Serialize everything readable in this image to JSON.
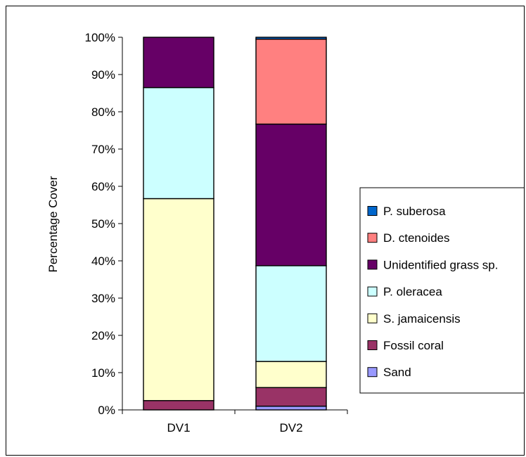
{
  "chart_data": {
    "type": "bar",
    "stacked": true,
    "percent": true,
    "categories": [
      "DV1",
      "DV2"
    ],
    "ylabel": "Percentage Cover",
    "xlabel": "",
    "ylim": [
      0,
      100
    ],
    "yticks": [
      "0%",
      "10%",
      "20%",
      "30%",
      "40%",
      "50%",
      "60%",
      "70%",
      "80%",
      "90%",
      "100%"
    ],
    "grid": false,
    "legend_position": "right",
    "series": [
      {
        "name": "Sand",
        "color": "#9999ff",
        "values": [
          0,
          1
        ]
      },
      {
        "name": "Fossil coral",
        "color": "#993366",
        "values": [
          2.5,
          5
        ]
      },
      {
        "name": "S. jamaicensis",
        "color": "#ffffcc",
        "values": [
          54.2,
          7
        ]
      },
      {
        "name": "P. oleracea",
        "color": "#ccffff",
        "values": [
          29.8,
          25.7
        ]
      },
      {
        "name": "Unidentified grass sp.",
        "color": "#660066",
        "values": [
          13.5,
          38
        ]
      },
      {
        "name": "D. ctenoides",
        "color": "#ff8080",
        "values": [
          0,
          22.8
        ]
      },
      {
        "name": "P. suberosa",
        "color": "#0066cc",
        "values": [
          0,
          0.5
        ]
      }
    ]
  }
}
